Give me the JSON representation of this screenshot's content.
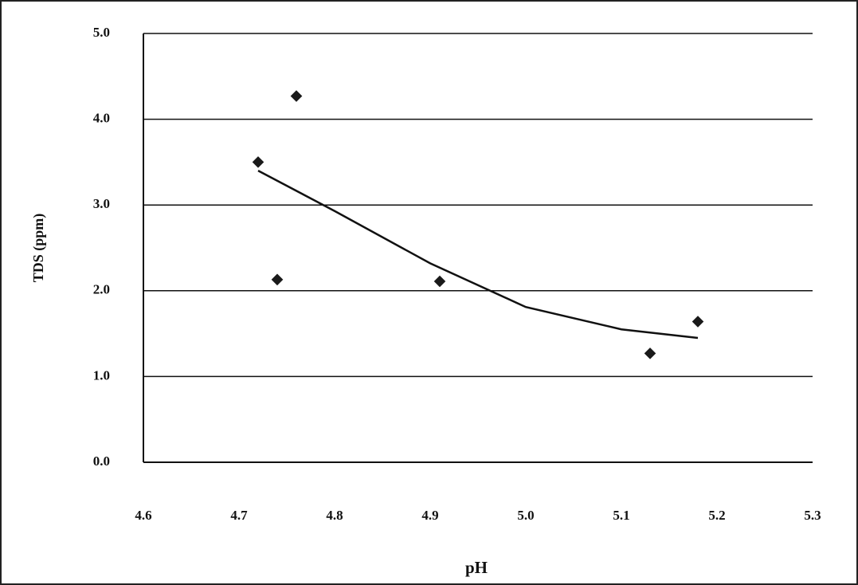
{
  "chart_data": {
    "type": "scatter",
    "x_label": "pH",
    "y_label": "TDS (ppm)",
    "x": [
      4.72,
      4.76,
      4.74,
      4.91,
      5.13,
      5.18
    ],
    "values": [
      3.5,
      4.27,
      2.13,
      2.11,
      1.27,
      1.64
    ],
    "color": "#1a1a1a",
    "trendline": {
      "x": [
        4.72,
        4.8,
        4.9,
        5.0,
        5.1,
        5.18
      ],
      "values": [
        3.4,
        2.93,
        2.32,
        1.81,
        1.55,
        1.45
      ]
    },
    "xlim": [
      4.6,
      5.3
    ],
    "xticks": [
      4.6,
      4.7,
      4.8,
      4.9,
      {
        "value": 5,
        "label": "5.0"
      },
      5.1,
      5.2,
      5.3
    ],
    "ylim": [
      0,
      5
    ],
    "yticks": [
      {
        "value": 0,
        "label": "0.0"
      },
      {
        "value": 1,
        "label": "1.0"
      },
      {
        "value": 2,
        "label": "2.0"
      },
      {
        "value": 3,
        "label": "3.0"
      },
      {
        "value": 4,
        "label": "4.0"
      },
      {
        "value": 5,
        "label": "5.0"
      }
    ],
    "grid": true
  }
}
